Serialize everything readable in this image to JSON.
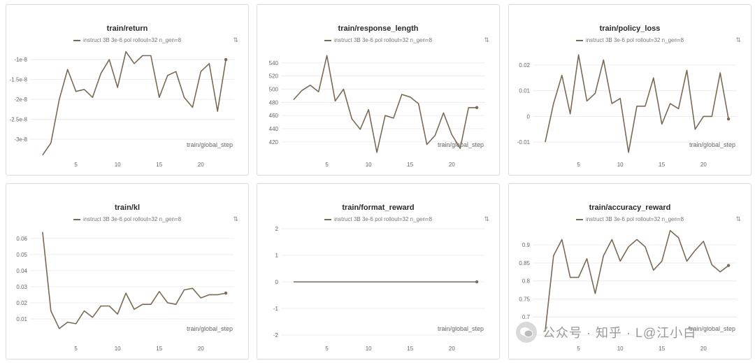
{
  "legend_label": "instruct 3B 3e-6 pol rollout=32 n_gen=8",
  "xlabel": "train/global_step",
  "watermark_text": "公众号 · 知乎 · L@江小白",
  "colors": {
    "line": "#7a6a55",
    "grid": "#ececec",
    "tick": "#666666"
  },
  "chart_data": [
    {
      "type": "line",
      "title": "train/return",
      "xlabel": "train/global_step",
      "xlim": [
        0,
        24
      ],
      "xticks": [
        5,
        10,
        15,
        20
      ],
      "ylim": [
        -3.3e-08,
        -7.5e-09
      ],
      "yticks": [
        -1e-08,
        -1.5e-08,
        -2e-08,
        -2.5e-08,
        -3e-08
      ],
      "ytick_labels": [
        "-1e-8",
        "-1.5e-8",
        "-2e-8",
        "-2.5e-8",
        "-3e-8"
      ],
      "series": [
        {
          "name": "instruct 3B 3e-6 pol rollout=32 n_gen=8",
          "x": [
            1,
            2,
            3,
            4,
            5,
            6,
            7,
            8,
            9,
            10,
            11,
            12,
            13,
            14,
            15,
            16,
            17,
            18,
            19,
            20,
            21,
            22,
            23
          ],
          "y": [
            -3.4e-08,
            -3.1e-08,
            -2e-08,
            -1.25e-08,
            -1.8e-08,
            -1.75e-08,
            -1.95e-08,
            -1.35e-08,
            -1e-08,
            -1.7e-08,
            -8e-09,
            -1.1e-08,
            -9e-09,
            -9e-09,
            -1.95e-08,
            -1.4e-08,
            -1.3e-08,
            -1.95e-08,
            -2.2e-08,
            -1.3e-08,
            -1.1e-08,
            -2.3e-08,
            -1e-08
          ]
        }
      ]
    },
    {
      "type": "line",
      "title": "train/response_length",
      "xlabel": "train/global_step",
      "xlim": [
        0,
        24
      ],
      "xticks": [
        5,
        10,
        15,
        20
      ],
      "ylim": [
        406,
        560
      ],
      "yticks": [
        420,
        440,
        460,
        480,
        500,
        520,
        540
      ],
      "ytick_labels": [
        "420",
        "440",
        "460",
        "480",
        "500",
        "520",
        "540"
      ],
      "series": [
        {
          "name": "instruct 3B 3e-6 pol rollout=32 n_gen=8",
          "x": [
            1,
            2,
            3,
            4,
            5,
            6,
            7,
            8,
            9,
            10,
            11,
            12,
            13,
            14,
            15,
            16,
            17,
            18,
            19,
            20,
            21,
            22,
            23
          ],
          "y": [
            484,
            498,
            506,
            496,
            551,
            482,
            500,
            455,
            439,
            469,
            404,
            460,
            456,
            492,
            488,
            478,
            416,
            430,
            464,
            431,
            410,
            472,
            472
          ]
        }
      ]
    },
    {
      "type": "line",
      "title": "train/policy_loss",
      "xlabel": "train/global_step",
      "xlim": [
        0,
        24
      ],
      "xticks": [
        5,
        10,
        15,
        20
      ],
      "ylim": [
        -0.0135,
        0.026
      ],
      "yticks": [
        -0.01,
        0,
        0.01,
        0.02
      ],
      "ytick_labels": [
        "-0.01",
        "0",
        "0.01",
        "0.02"
      ],
      "series": [
        {
          "name": "instruct 3B 3e-6 pol rollout=32 n_gen=8",
          "x": [
            1,
            2,
            3,
            4,
            5,
            6,
            7,
            8,
            9,
            10,
            11,
            12,
            13,
            14,
            15,
            16,
            17,
            18,
            19,
            20,
            21,
            22,
            23
          ],
          "y": [
            -0.01,
            0.005,
            0.016,
            0.001,
            0.024,
            0.006,
            0.009,
            0.022,
            0.005,
            0.007,
            -0.014,
            0.004,
            0.004,
            0.015,
            -0.003,
            0.005,
            0.003,
            0.018,
            -0.005,
            0.0,
            0.0,
            0.017,
            -0.001
          ]
        }
      ]
    },
    {
      "type": "line",
      "title": "train/kl",
      "xlabel": "train/global_step",
      "xlim": [
        0,
        24
      ],
      "xticks": [
        5,
        10,
        15,
        20
      ],
      "ylim": [
        0,
        0.066
      ],
      "yticks": [
        0.01,
        0.02,
        0.03,
        0.04,
        0.05,
        0.06
      ],
      "ytick_labels": [
        "0.01",
        "0.02",
        "0.03",
        "0.04",
        "0.05",
        "0.06"
      ],
      "series": [
        {
          "name": "instruct 3B 3e-6 pol rollout=32 n_gen=8",
          "x": [
            1,
            2,
            3,
            4,
            5,
            6,
            7,
            8,
            9,
            10,
            11,
            12,
            13,
            14,
            15,
            16,
            17,
            18,
            19,
            20,
            21,
            22,
            23
          ],
          "y": [
            0.064,
            0.015,
            0.004,
            0.008,
            0.007,
            0.015,
            0.011,
            0.018,
            0.018,
            0.013,
            0.026,
            0.016,
            0.019,
            0.019,
            0.027,
            0.02,
            0.019,
            0.028,
            0.029,
            0.023,
            0.025,
            0.025,
            0.026
          ]
        }
      ]
    },
    {
      "type": "line",
      "title": "train/format_reward",
      "xlabel": "train/global_step",
      "xlim": [
        0,
        24
      ],
      "xticks": [
        5,
        10,
        15,
        20
      ],
      "ylim": [
        -2,
        2
      ],
      "yticks": [
        -2,
        -1,
        0,
        1,
        2
      ],
      "ytick_labels": [
        "-2",
        "-1",
        "0",
        "1",
        "2"
      ],
      "series": [
        {
          "name": "instruct 3B 3e-6 pol rollout=32 n_gen=8",
          "x": [
            1,
            2,
            3,
            4,
            5,
            6,
            7,
            8,
            9,
            10,
            11,
            12,
            13,
            14,
            15,
            16,
            17,
            18,
            19,
            20,
            21,
            22,
            23
          ],
          "y": [
            0,
            0,
            0,
            0,
            0,
            0,
            0,
            0,
            0,
            0,
            0,
            0,
            0,
            0,
            0,
            0,
            0,
            0,
            0,
            0,
            0,
            0,
            0
          ]
        }
      ]
    },
    {
      "type": "line",
      "title": "train/accuracy_reward",
      "xlabel": "train/global_step",
      "xlim": [
        0,
        24
      ],
      "xticks": [
        5,
        10,
        15,
        20
      ],
      "ylim": [
        0.65,
        0.945
      ],
      "yticks": [
        0.65,
        0.7,
        0.75,
        0.8,
        0.85,
        0.9
      ],
      "ytick_labels": [
        "0.65",
        "0.7",
        "0.75",
        "0.8",
        "0.85",
        "0.9"
      ],
      "series": [
        {
          "name": "instruct 3B 3e-6 pol rollout=32 n_gen=8",
          "x": [
            1,
            2,
            3,
            4,
            5,
            6,
            7,
            8,
            9,
            10,
            11,
            12,
            13,
            14,
            15,
            16,
            17,
            18,
            19,
            20,
            21,
            22,
            23
          ],
          "y": [
            0.66,
            0.87,
            0.915,
            0.81,
            0.81,
            0.862,
            0.765,
            0.87,
            0.915,
            0.855,
            0.895,
            0.915,
            0.895,
            0.83,
            0.855,
            0.94,
            0.92,
            0.855,
            0.885,
            0.91,
            0.845,
            0.825,
            0.843
          ]
        }
      ]
    }
  ]
}
